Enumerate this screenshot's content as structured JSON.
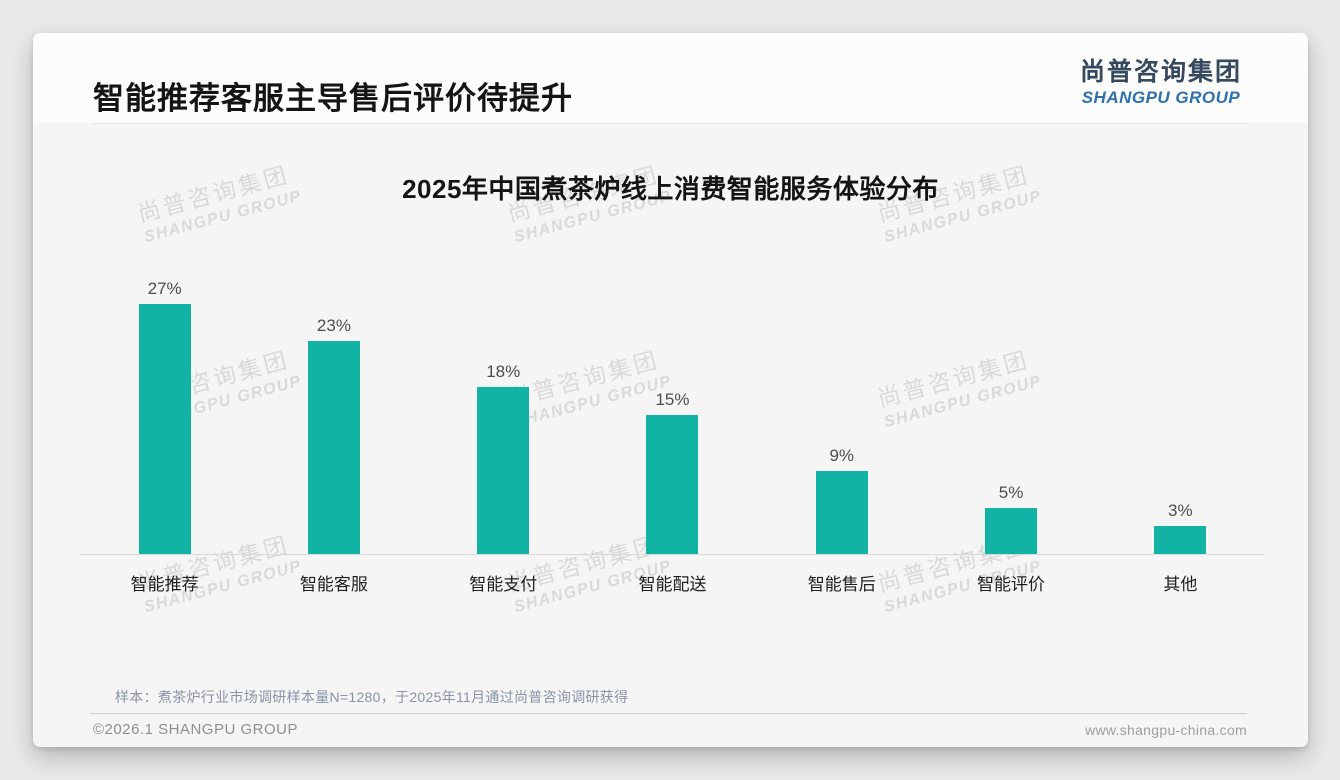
{
  "slide": {
    "title": "智能推荐客服主导售后评价待提升",
    "logo": {
      "cn": "尚普咨询集团",
      "en": "SHANGPU GROUP"
    },
    "watermark": {
      "cn": "尚普咨询集团",
      "en": "SHANGPU GROUP"
    },
    "footnote": "样本：煮茶炉行业市场调研样本量N=1280，于2025年11月通过尚普咨询调研获得",
    "footer_left": "©2026.1 SHANGPU GROUP",
    "footer_right": "www.shangpu-china.com"
  },
  "chart_data": {
    "type": "bar",
    "title": "2025年中国煮茶炉线上消费智能服务体验分布",
    "categories": [
      "智能推荐",
      "智能客服",
      "智能支付",
      "智能配送",
      "智能售后",
      "智能评价",
      "其他"
    ],
    "values": [
      27,
      23,
      18,
      15,
      9,
      5,
      3
    ],
    "data_labels": [
      "27%",
      "23%",
      "18%",
      "15%",
      "9%",
      "5%",
      "3%"
    ],
    "unit": "%",
    "bar_color": "#12B2A4",
    "value_label_color": "#4d4d4d",
    "xlabel": "",
    "ylabel": "",
    "ylim": [
      0,
      30
    ],
    "grid": false,
    "legend": false
  }
}
